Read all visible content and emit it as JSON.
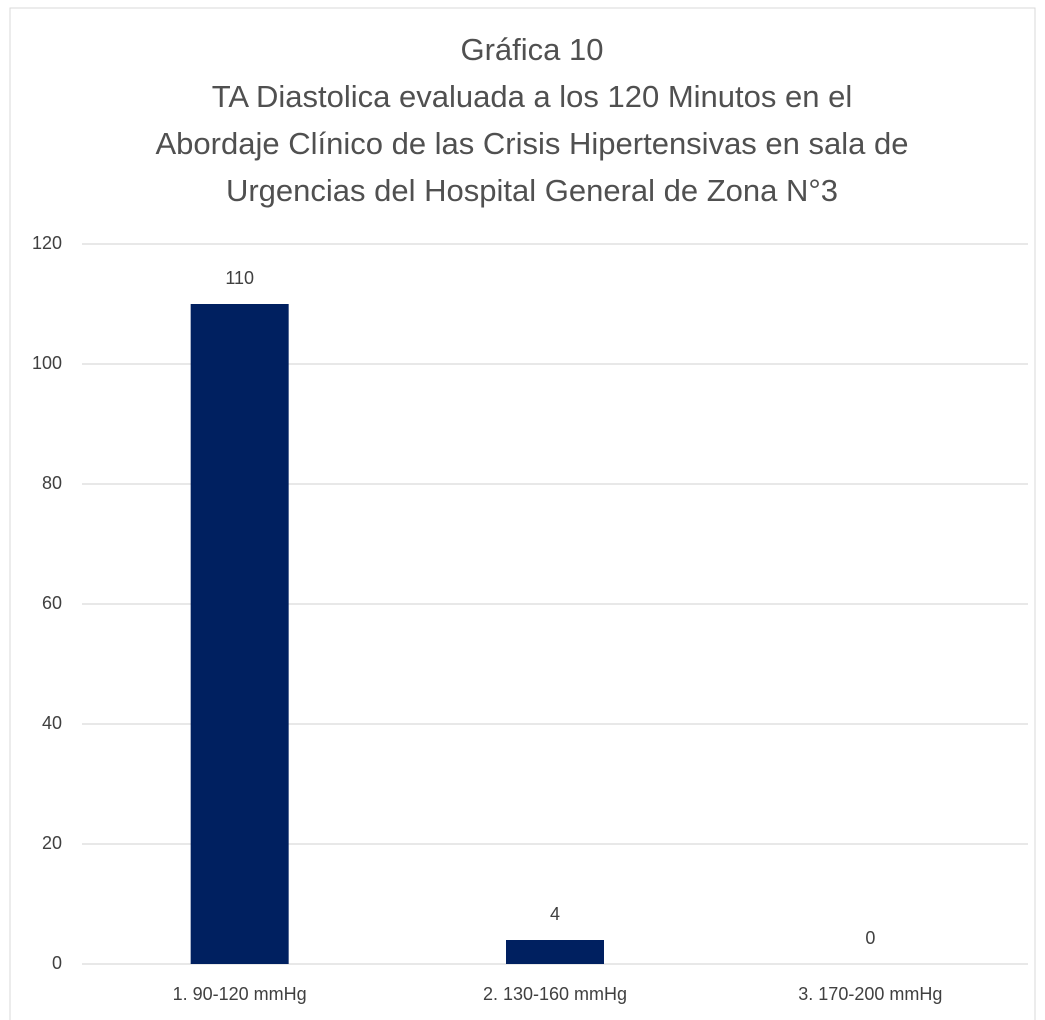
{
  "chart_data": {
    "type": "bar",
    "title": [
      "Gráfica 10",
      "TA Diastolica evaluada a los 120 Minutos en el",
      "Abordaje Clínico de las Crisis Hipertensivas en sala de",
      "Urgencias del Hospital General de Zona N°3"
    ],
    "categories": [
      "1. 90-120 mmHg",
      "2. 130-160 mmHg",
      "3. 170-200 mmHg"
    ],
    "values": [
      110,
      4,
      0
    ],
    "color": "#002060",
    "ylim": [
      0,
      120
    ],
    "yticks": [
      0,
      20,
      40,
      60,
      80,
      100,
      120
    ],
    "grid": true
  }
}
